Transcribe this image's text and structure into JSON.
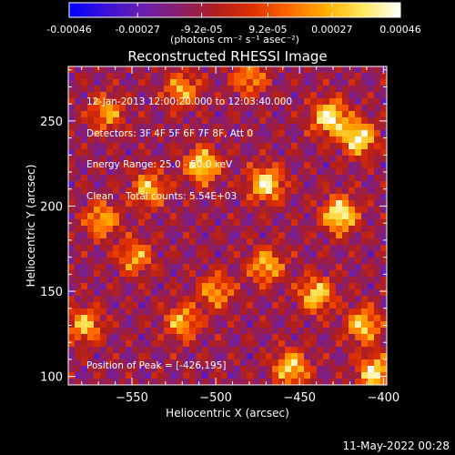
{
  "colorbar": {
    "tick_labels": [
      "-0.00046",
      "-0.00027",
      "-9.2e-05",
      "9.2e-05",
      "0.00027",
      "0.00046"
    ],
    "tick_values": [
      -0.00046,
      -0.00027,
      -9.2e-05,
      9.2e-05,
      0.00027,
      0.00046
    ],
    "range": [
      -0.00046,
      0.00046
    ],
    "units": "(photons cm⁻² s⁻¹ asec⁻²)",
    "colormap": [
      "#0000ff",
      "#3a10d8",
      "#6a1fb0",
      "#8a1e6a",
      "#b01e1e",
      "#e03000",
      "#ff6a00",
      "#ffb000",
      "#ffe860",
      "#ffffff"
    ]
  },
  "chart_data": {
    "type": "heatmap",
    "title": "Reconstructed RHESSI Image",
    "xlabel": "Heliocentric X (arcsec)",
    "ylabel": "Heliocentric Y (arcsec)",
    "xlim": [
      -588,
      -398
    ],
    "ylim": [
      95,
      282
    ],
    "x_ticks": [
      -550,
      -500,
      -450,
      -400
    ],
    "x_tick_labels": [
      "−550",
      "−500",
      "−450",
      "−400"
    ],
    "y_ticks": [
      100,
      150,
      200,
      250
    ],
    "y_tick_labels": [
      "100",
      "150",
      "200",
      "250"
    ],
    "peak": [
      -426,
      195
    ],
    "hotspots": [
      {
        "x": -432,
        "y": 252,
        "value": 0.00046
      },
      {
        "x": -415,
        "y": 240,
        "value": 0.00044
      },
      {
        "x": -470,
        "y": 213,
        "value": 0.00042
      },
      {
        "x": -426,
        "y": 195,
        "value": 0.00046
      },
      {
        "x": -508,
        "y": 224,
        "value": 0.0004
      },
      {
        "x": -540,
        "y": 210,
        "value": 0.0003
      },
      {
        "x": -568,
        "y": 192,
        "value": 0.00028
      },
      {
        "x": -578,
        "y": 130,
        "value": 0.0003
      },
      {
        "x": -548,
        "y": 170,
        "value": 0.00024
      },
      {
        "x": -520,
        "y": 132,
        "value": 0.00028
      },
      {
        "x": -500,
        "y": 150,
        "value": 0.00025
      },
      {
        "x": -470,
        "y": 165,
        "value": 0.0003
      },
      {
        "x": -440,
        "y": 148,
        "value": 0.00036
      },
      {
        "x": -412,
        "y": 130,
        "value": 0.00034
      },
      {
        "x": -455,
        "y": 105,
        "value": 0.00036
      },
      {
        "x": -405,
        "y": 102,
        "value": 0.0004
      },
      {
        "x": -520,
        "y": 268,
        "value": 0.00026
      },
      {
        "x": -565,
        "y": 255,
        "value": 0.00024
      },
      {
        "x": -480,
        "y": 275,
        "value": 0.00022
      }
    ],
    "annotations": {
      "line1": "12-Jan-2013 12:00:20.000 to 12:03:40.000",
      "line2": "Detectors: 3F 4F 5F 6F 7F 8F, Att 0",
      "line3": "Energy Range: 25.0 - 50.0 keV",
      "line4": "Clean    Total counts: 5.54E+03",
      "peak_text": "Position of Peak = [-426,195]"
    }
  },
  "timestamp": "11-May-2022 00:28"
}
